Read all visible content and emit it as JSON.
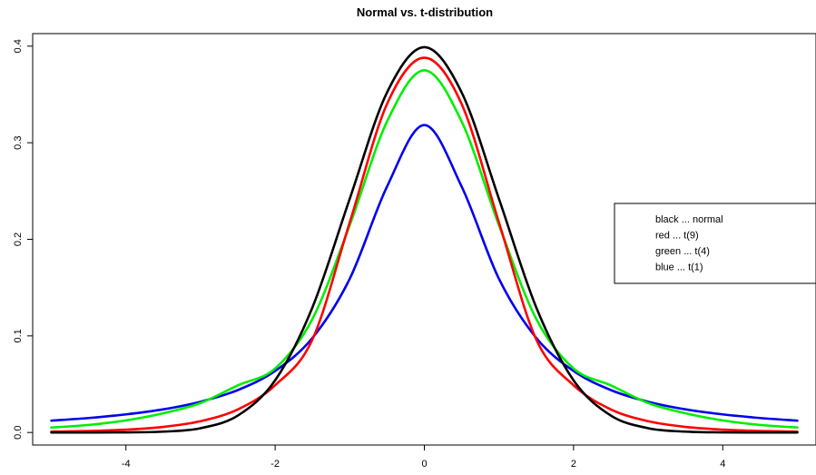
{
  "chart_data": {
    "type": "line",
    "title": "Normal vs. t-distribution",
    "xlabel": "",
    "ylabel": "",
    "xlim": [
      -5.25,
      5.25
    ],
    "ylim": [
      -0.013,
      0.413
    ],
    "x_ticks": [
      -4,
      -2,
      0,
      2,
      4
    ],
    "x_tick_labels": [
      "-4",
      "-2",
      "0",
      "2",
      "4"
    ],
    "y_ticks": [
      0.0,
      0.1,
      0.2,
      0.3,
      0.4
    ],
    "y_tick_labels": [
      "0.0",
      "0.1",
      "0.2",
      "0.3",
      "0.4"
    ],
    "grid": false,
    "legend_position": "right",
    "legend": [
      "black ... normal",
      "red ... t(9)",
      "green ... t(4)",
      "blue ... t(1)"
    ],
    "x": [
      -5,
      -4.5,
      -4,
      -3.5,
      -3,
      -2.5,
      -2,
      -1.5,
      -1,
      -0.5,
      0,
      0.5,
      1,
      1.5,
      2,
      2.5,
      3,
      3.5,
      4,
      4.5,
      5
    ],
    "series": [
      {
        "color": "#000000",
        "values": [
          1.5e-06,
          1.6e-05,
          0.000134,
          0.000873,
          0.004432,
          0.017528,
          0.053991,
          0.129518,
          0.241971,
          0.352065,
          0.398942,
          0.352065,
          0.241971,
          0.129518,
          0.053991,
          0.017528,
          0.004432,
          0.000873,
          0.000134,
          1.6e-05,
          1.5e-06
        ]
      },
      {
        "color": "#ff0000",
        "values": [
          0.00085,
          0.00155,
          0.00294,
          0.00578,
          0.01165,
          0.02387,
          0.0489,
          0.0963,
          0.2175,
          0.3401,
          0.388,
          0.3401,
          0.2175,
          0.0963,
          0.0489,
          0.02387,
          0.01165,
          0.00578,
          0.00294,
          0.00155,
          0.00085
        ]
      },
      {
        "color": "#00ee00",
        "values": [
          0.00512,
          0.00779,
          0.0125,
          0.0199,
          0.03049,
          0.0488,
          0.06629,
          0.1176,
          0.2147,
          0.322,
          0.375,
          0.322,
          0.2147,
          0.1176,
          0.06629,
          0.0488,
          0.03049,
          0.0199,
          0.0125,
          0.00779,
          0.00512
        ]
      },
      {
        "color": "#0000ee",
        "values": [
          0.01224,
          0.01499,
          0.01872,
          0.02395,
          0.03183,
          0.0439,
          0.06366,
          0.09794,
          0.15915,
          0.25465,
          0.31831,
          0.25465,
          0.15915,
          0.09794,
          0.06366,
          0.0439,
          0.03183,
          0.02395,
          0.01872,
          0.01499,
          0.01224
        ]
      }
    ]
  }
}
